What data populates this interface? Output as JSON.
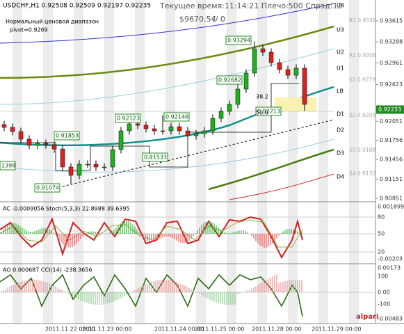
{
  "header": {
    "symbol_line": "USDCHF,H1  0.92508 0.92509 0.92197 0.92235",
    "range_label": "Нормальный ценовой диапазон",
    "pivot": "pivot=0.9269",
    "status": "Текущее время:11:14:21 Плечо:500 Спрэд:13",
    "balance": "$9670.54",
    "slash": "// 0"
  },
  "price_axis": {
    "ylim": [
      0.90797,
      0.9394
    ],
    "ticks": [
      0.93615,
      0.93288,
      0.92961,
      0.92623,
      0.92051,
      0.91756,
      0.91456,
      0.91151,
      0.90851
    ],
    "current": "0.92233"
  },
  "candles": {
    "open": [
      0.92,
      0.91956,
      0.91891,
      0.91772,
      0.91675,
      0.91707,
      0.91686,
      0.9162,
      0.91339,
      0.91209,
      0.91382,
      0.91382,
      0.91339,
      0.91339,
      0.9161,
      0.91902,
      0.92011,
      0.91989,
      0.91935,
      0.91902,
      0.91902,
      0.91967,
      0.91902,
      0.91826,
      0.91859,
      0.91902,
      0.92097,
      0.92206,
      0.92314,
      0.92553,
      0.92802,
      0.93181,
      0.93127,
      0.92964,
      0.92856,
      0.92769,
      0.92878
    ],
    "high": [
      0.9206,
      0.92016,
      0.91951,
      0.91832,
      0.91767,
      0.91767,
      0.91746,
      0.9168,
      0.91399,
      0.91442,
      0.91442,
      0.91442,
      0.91399,
      0.9167,
      0.91962,
      0.92123,
      0.92071,
      0.92049,
      0.91995,
      0.92146,
      0.92027,
      0.92027,
      0.91962,
      0.91919,
      0.91962,
      0.92157,
      0.92266,
      0.92374,
      0.92682,
      0.92862,
      0.93294,
      0.93241,
      0.93187,
      0.93024,
      0.92916,
      0.92938,
      0.92938
    ],
    "low": [
      0.91896,
      0.91831,
      0.91712,
      0.91615,
      0.91615,
      0.91626,
      0.9156,
      0.91279,
      0.91074,
      0.91149,
      0.91322,
      0.91279,
      0.91279,
      0.91279,
      0.9155,
      0.91842,
      0.91929,
      0.91875,
      0.91842,
      0.91842,
      0.91842,
      0.91842,
      0.91766,
      0.91766,
      0.91799,
      0.91842,
      0.92037,
      0.92146,
      0.92254,
      0.92493,
      0.92742,
      0.93067,
      0.92904,
      0.92796,
      0.92709,
      0.92709,
      0.92213
    ],
    "close": [
      0.91956,
      0.91891,
      0.91772,
      0.91675,
      0.91707,
      0.91686,
      0.9162,
      0.91339,
      0.91209,
      0.91382,
      0.91382,
      0.91339,
      0.91339,
      0.9161,
      0.91902,
      0.92011,
      0.91989,
      0.91935,
      0.91902,
      0.91902,
      0.91967,
      0.91902,
      0.91826,
      0.91859,
      0.91902,
      0.92097,
      0.92206,
      0.92314,
      0.92553,
      0.92802,
      0.93181,
      0.93127,
      0.92964,
      0.92856,
      0.92769,
      0.92878,
      0.92314
    ]
  },
  "price_boxes": [
    "0.93294",
    "0.92682",
    "0.92123",
    "0.92146",
    "0.91853",
    "0.91533",
    "0.91074",
    "0.92213",
    "1398"
  ],
  "levels": [
    "U4",
    "U3",
    "U2",
    "U1",
    "LB",
    "D1",
    "D2",
    "D3",
    "D4"
  ],
  "pivots": [
    "R2 0.9336",
    "R1 0.9308",
    "S1 0.9279",
    "S2 0.9209",
    "S3 0.9188",
    "S4 0.9132"
  ],
  "fib": [
    "38.2",
    "50.0"
  ],
  "ac_panel": {
    "title": "AC -0.0009056  Stoch(5,3,3) 22.8988 39.6395",
    "scale": [
      "0.001899",
      "80",
      "50",
      "20",
      "-0.00203"
    ]
  },
  "ao_panel": {
    "title": "AO 0.000687  CCI(14) -238.3656",
    "scale": [
      "0.00173",
      "100",
      "0.00",
      "-100",
      "-0.00483"
    ]
  },
  "dates": [
    "2011.11.22 00:00",
    "2011.11.23 00:00",
    "2011.11.24 00:00",
    "2011.11.25 00:00",
    "2011.11.28 00:00",
    "2011.11.29 00:00"
  ],
  "logo": "alpari"
}
